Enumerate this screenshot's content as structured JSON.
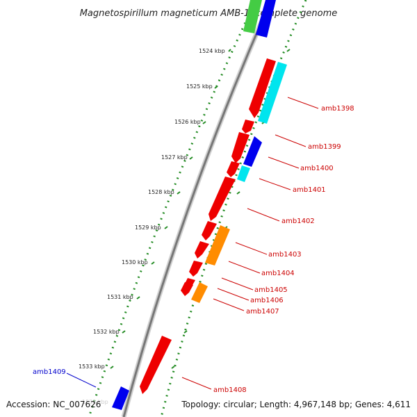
{
  "title": "Magnetospirillum magneticum AMB-1, complete genome",
  "accession_text": "Accession: NC_007626",
  "topology_text": "Topology: circular; Length: 4,967,148 bp; Genes: 4,611",
  "colors": {
    "red": "#ff0000",
    "cyan": "#00e5ee",
    "blue": "#0000ee",
    "orange": "#ff8c00",
    "green": "#44cc44",
    "backbone": "#888888",
    "ticks": "#228b22",
    "gene_label": "#cc0000",
    "gene_label_selected": "#0000cc"
  },
  "ticks": [
    {
      "label": "1524 kbp"
    },
    {
      "label": "1525 kbp"
    },
    {
      "label": "1526 kbp"
    },
    {
      "label": "1527 kbp"
    },
    {
      "label": "1528 kbp"
    },
    {
      "label": "1529 kbp"
    },
    {
      "label": "1530 kbp"
    },
    {
      "label": "1531 kbp"
    },
    {
      "label": "1532 kbp"
    },
    {
      "label": "1533 kbp"
    }
  ],
  "faded_tick_label": "1534 kbp",
  "gene_labels": [
    {
      "label": "amb1398"
    },
    {
      "label": "amb1399"
    },
    {
      "label": "amb1400"
    },
    {
      "label": "amb1401"
    },
    {
      "label": "amb1402"
    },
    {
      "label": "amb1403"
    },
    {
      "label": "amb1404"
    },
    {
      "label": "amb1405"
    },
    {
      "label": "amb1406"
    },
    {
      "label": "amb1407"
    },
    {
      "label": "amb1408"
    },
    {
      "label": "amb1409"
    }
  ]
}
